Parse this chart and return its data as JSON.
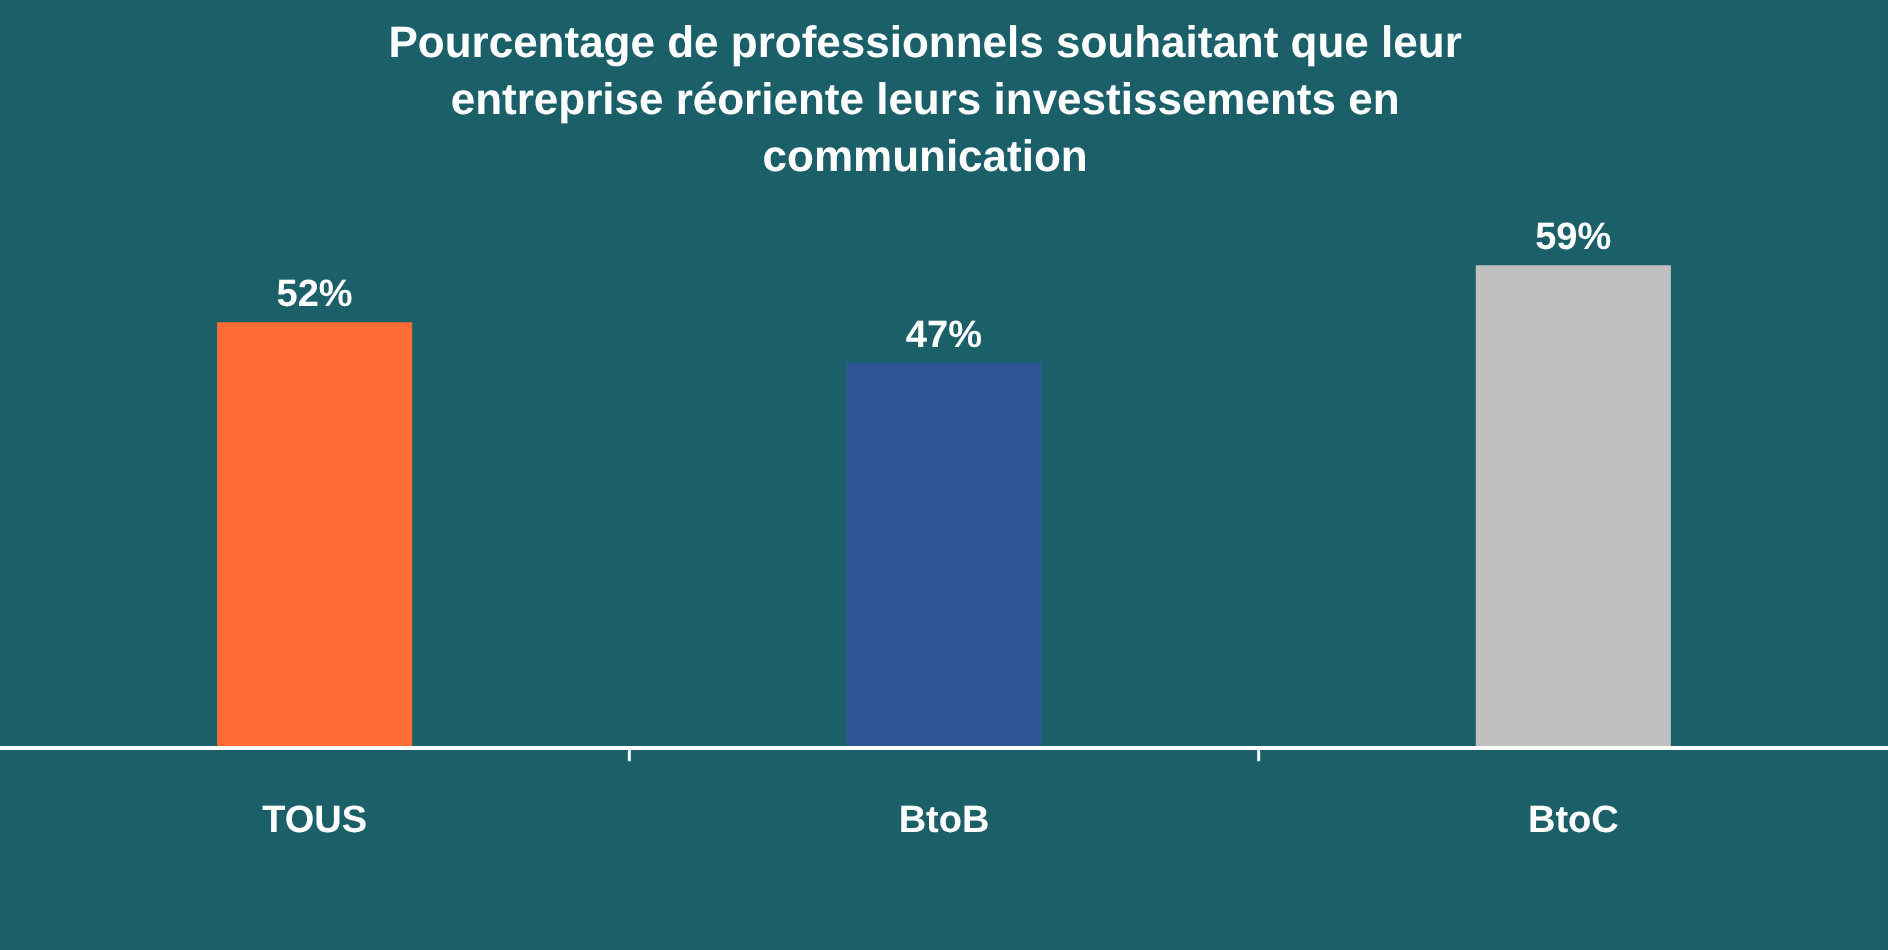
{
  "chart_data": {
    "type": "bar",
    "title": "Pourcentage de professionnels souhaitant que leur entreprise réoriente leurs investissements en communication",
    "categories": [
      "TOUS",
      "BtoB",
      "BtoC"
    ],
    "values": [
      52,
      47,
      59
    ],
    "colors": [
      "#ff6b35",
      "#2f5597",
      "#bfbfbf"
    ],
    "value_labels": [
      "52%",
      "47%",
      "59%"
    ]
  }
}
